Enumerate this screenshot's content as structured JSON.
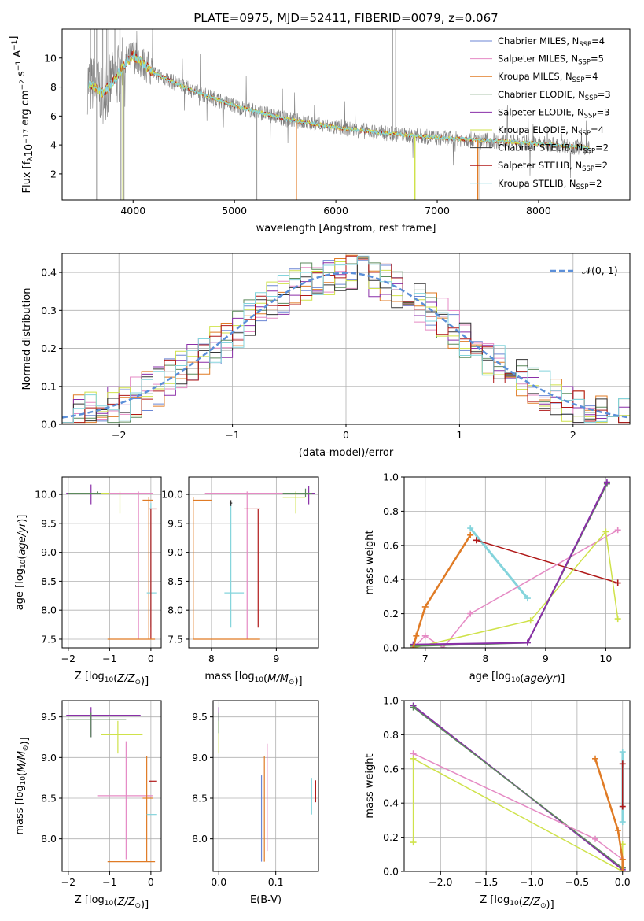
{
  "colors": {
    "chabrier_miles": "#6b86d4",
    "salpeter_miles": "#e58ac4",
    "kroupa_miles": "#e07b25",
    "chabrier_elodie": "#5c8a5c",
    "salpeter_elodie": "#8a2fa8",
    "kroupa_elodie": "#cfe24a",
    "chabrier_stelib": "#333333",
    "salpeter_stelib": "#b01818",
    "kroupa_stelib": "#84d4dc",
    "data": "#808080",
    "gauss": "#5b8fd9"
  },
  "chart_data": [
    {
      "id": "spectrum",
      "type": "line",
      "title": "PLATE=0975, MJD=52411, FIBERID=0079, z=0.067",
      "xlabel": "wavelength [Angstrom, rest frame]",
      "ylabel": "Flux [f_λ 10^-17 erg cm^-2 s^-1 A^-1]",
      "xlim": [
        3300,
        8900
      ],
      "ylim": [
        0.2,
        12
      ],
      "xticks": [
        "4000",
        "5000",
        "6000",
        "7000",
        "8000"
      ],
      "yticks": [
        "2",
        "4",
        "6",
        "8",
        "10"
      ],
      "grid": false,
      "legend_position": "top-right",
      "continuum_x": [
        3550,
        3700,
        3800,
        3900,
        4000,
        4200,
        4500,
        4800,
        5000,
        5500,
        6000,
        6500,
        7000,
        7500,
        8000,
        8500
      ],
      "continuum_y": [
        8.3,
        7.6,
        8.3,
        9.4,
        10.2,
        9.0,
        8.0,
        7.2,
        6.7,
        5.8,
        5.2,
        4.8,
        4.5,
        4.3,
        4.1,
        3.8
      ],
      "legend": [
        {
          "label": "Chabrier MILES, N",
          "sub": "SSP",
          "suffix": "=4",
          "color_key": "chabrier_miles"
        },
        {
          "label": "Salpeter MILES, N",
          "sub": "SSP",
          "suffix": "=5",
          "color_key": "salpeter_miles"
        },
        {
          "label": "Kroupa MILES, N",
          "sub": "SSP",
          "suffix": "=4",
          "color_key": "kroupa_miles"
        },
        {
          "label": "Chabrier ELODIE, N",
          "sub": "SSP",
          "suffix": "=3",
          "color_key": "chabrier_elodie"
        },
        {
          "label": "Salpeter ELODIE, N",
          "sub": "SSP",
          "suffix": "=3",
          "color_key": "salpeter_elodie"
        },
        {
          "label": "Kroupa ELODIE, N",
          "sub": "SSP",
          "suffix": "=4",
          "color_key": "kroupa_elodie"
        },
        {
          "label": "Chabrier STELIB, N",
          "sub": "SSP",
          "suffix": "=2",
          "color_key": "chabrier_stelib"
        },
        {
          "label": "Salpeter STELIB, N",
          "sub": "SSP",
          "suffix": "=2",
          "color_key": "salpeter_stelib"
        },
        {
          "label": "Kroupa STELIB, N",
          "sub": "SSP",
          "suffix": "=2",
          "color_key": "kroupa_stelib"
        }
      ]
    },
    {
      "id": "residuals",
      "type": "line",
      "xlabel": "(data-model)/error",
      "ylabel": "Normed distribution",
      "xlim": [
        -2.5,
        2.5
      ],
      "ylim": [
        0,
        0.45
      ],
      "xticks": [
        "−2",
        "−1",
        "0",
        "1",
        "2"
      ],
      "yticks": [
        "0.0",
        "0.1",
        "0.2",
        "0.3",
        "0.4"
      ],
      "grid": true,
      "legend_position": "top-right",
      "legend_label": "𝒩(0, 1)",
      "bin_width": 0.1
    },
    {
      "id": "age-vs-Z",
      "type": "scatter",
      "xlabel": "Z [log10(Z/Z⊙)]",
      "ylabel": "age  [log10(age/yr)]",
      "xlim": [
        -2.15,
        0.25
      ],
      "ylim": [
        7.35,
        10.3
      ],
      "xticks": [
        "−2",
        "−1",
        "0"
      ],
      "yticks": [
        "7.5",
        "8.0",
        "8.5",
        "9.0",
        "9.5",
        "10.0"
      ],
      "grid": true,
      "points": [
        {
          "c": "salpeter_elodie",
          "x": -1.45,
          "y": 10.02,
          "xlo": -2.05,
          "xhi": -0.85,
          "ylo": 9.83,
          "yhi": 10.17
        },
        {
          "c": "chabrier_elodie",
          "x": -1.3,
          "y": 10.02,
          "xlo": -2.0,
          "xhi": -0.3,
          "ylo": 10.0,
          "yhi": 10.05
        },
        {
          "c": "kroupa_elodie",
          "x": -0.75,
          "y": 10.02,
          "xlo": -1.2,
          "xhi": -0.3,
          "ylo": 9.67,
          "yhi": 10.05
        },
        {
          "c": "salpeter_miles",
          "x": -0.3,
          "y": 10.02,
          "xlo": -1.0,
          "xhi": 0.05,
          "ylo": 7.5,
          "yhi": 10.05
        },
        {
          "c": "kroupa_miles",
          "x": -0.05,
          "y": 9.9,
          "xlo": -0.2,
          "xhi": 0.05,
          "ylo": 7.5,
          "yhi": 9.95
        },
        {
          "c": "kroupa_stelib",
          "x": 0.0,
          "y": 8.3,
          "xlo": -0.1,
          "xhi": 0.15,
          "ylo": 7.7,
          "yhi": 9.85
        },
        {
          "c": "salpeter_stelib",
          "x": 0.0,
          "y": 9.75,
          "xlo": -0.05,
          "xhi": 0.15,
          "ylo": 7.5,
          "yhi": 9.75
        },
        {
          "c": "kroupa_miles",
          "x": -0.5,
          "y": 7.5,
          "xlo": -1.05,
          "xhi": 0.1,
          "ylo": 7.5,
          "yhi": 7.5
        }
      ]
    },
    {
      "id": "age-vs-mass",
      "type": "scatter",
      "xlabel": "mass [log10(M/M⊙)]",
      "ylabel": "",
      "xlim": [
        7.65,
        9.65
      ],
      "ylim": [
        7.35,
        10.3
      ],
      "xticks": [
        "8",
        "9"
      ],
      "yticks": [
        "7.5",
        "8.0",
        "8.5",
        "9.0",
        "9.5",
        "10.0"
      ],
      "grid": true,
      "points": [
        {
          "c": "salpeter_elodie",
          "x": 9.5,
          "y": 10.02,
          "xlo": 9.3,
          "xhi": 9.6,
          "ylo": 9.83,
          "yhi": 10.15
        },
        {
          "c": "kroupa_elodie",
          "x": 9.3,
          "y": 9.95,
          "xlo": 9.1,
          "xhi": 9.45,
          "ylo": 9.67,
          "yhi": 10.05
        },
        {
          "c": "chabrier_elodie",
          "x": 9.45,
          "y": 10.02,
          "xlo": 8.0,
          "xhi": 9.55,
          "ylo": 9.95,
          "yhi": 10.1
        },
        {
          "c": "salpeter_miles",
          "x": 8.55,
          "y": 10.02,
          "xlo": 7.9,
          "xhi": 9.1,
          "ylo": 7.5,
          "yhi": 10.05
        },
        {
          "c": "kroupa_miles",
          "x": 7.72,
          "y": 9.9,
          "xlo": 7.72,
          "xhi": 8.0,
          "ylo": 7.5,
          "yhi": 9.95
        },
        {
          "c": "kroupa_stelib",
          "x": 8.3,
          "y": 8.3,
          "xlo": 8.2,
          "xhi": 8.5,
          "ylo": 7.7,
          "yhi": 9.85
        },
        {
          "c": "salpeter_stelib",
          "x": 8.72,
          "y": 9.75,
          "xlo": 8.5,
          "xhi": 8.75,
          "ylo": 7.7,
          "yhi": 9.75
        },
        {
          "c": "kroupa_miles",
          "x": 8.2,
          "y": 7.5,
          "xlo": 7.72,
          "xhi": 8.75,
          "ylo": 7.5,
          "yhi": 7.5
        },
        {
          "c": "chabrier_stelib",
          "x": 8.3,
          "y": 9.85,
          "xlo": 8.28,
          "xhi": 8.32,
          "ylo": 9.8,
          "yhi": 9.9
        }
      ]
    },
    {
      "id": "massweight-vs-age",
      "type": "line",
      "xlabel": "age  [log10(age/yr)]",
      "ylabel": "mass weight",
      "xlim": [
        6.65,
        10.4
      ],
      "ylim": [
        0,
        1.0
      ],
      "xticks": [
        "7",
        "8",
        "9",
        "10"
      ],
      "yticks": [
        "0.0",
        "0.2",
        "0.4",
        "0.6",
        "0.8",
        "1.0"
      ],
      "grid": true,
      "series": [
        {
          "c": "kroupa_stelib",
          "x": [
            7.75,
            8.7
          ],
          "y": [
            0.7,
            0.29
          ],
          "w": 3
        },
        {
          "c": "salpeter_stelib",
          "x": [
            7.85,
            10.2
          ],
          "y": [
            0.63,
            0.38
          ],
          "w": 1.5
        },
        {
          "c": "salpeter_miles",
          "x": [
            6.8,
            7.0,
            7.3,
            7.75,
            10.2
          ],
          "y": [
            0.0,
            0.07,
            0.0,
            0.2,
            0.69
          ],
          "w": 1.5
        },
        {
          "c": "kroupa_elodie",
          "x": [
            6.8,
            8.75,
            10.0,
            10.2
          ],
          "y": [
            0.0,
            0.16,
            0.68,
            0.17
          ],
          "w": 1.5
        },
        {
          "c": "chabrier_elodie",
          "x": [
            6.8,
            8.7,
            10.02
          ],
          "y": [
            0.01,
            0.03,
            0.96
          ],
          "w": 2
        },
        {
          "c": "salpeter_elodie",
          "x": [
            6.8,
            8.7,
            10.02
          ],
          "y": [
            0.02,
            0.03,
            0.97
          ],
          "w": 2
        },
        {
          "c": "kroupa_miles",
          "x": [
            6.8,
            6.85,
            7.0,
            7.75
          ],
          "y": [
            0.0,
            0.07,
            0.24,
            0.66
          ],
          "w": 2.5
        }
      ]
    },
    {
      "id": "mass-vs-Z",
      "type": "scatter",
      "xlabel": "Z [log10(Z/Z⊙)]",
      "ylabel": "mass [log10(M/M⊙)]",
      "xlim": [
        -2.15,
        0.25
      ],
      "ylim": [
        7.6,
        9.7
      ],
      "xticks": [
        "−2",
        "−1",
        "0"
      ],
      "yticks": [
        "8.0",
        "8.5",
        "9.0",
        "9.5"
      ],
      "grid": true,
      "points": [
        {
          "c": "salpeter_elodie",
          "x": -1.45,
          "y": 9.52,
          "xlo": -2.05,
          "xhi": -0.25,
          "ylo": 9.25,
          "yhi": 9.62
        },
        {
          "c": "chabrier_elodie",
          "x": -1.45,
          "y": 9.47,
          "xlo": -2.05,
          "xhi": -0.6,
          "ylo": 9.25,
          "yhi": 9.55
        },
        {
          "c": "kroupa_elodie",
          "x": -0.8,
          "y": 9.28,
          "xlo": -1.2,
          "xhi": -0.2,
          "ylo": 9.05,
          "yhi": 9.45
        },
        {
          "c": "salpeter_miles",
          "x": -0.6,
          "y": 8.53,
          "xlo": -1.3,
          "xhi": 0.05,
          "ylo": 7.75,
          "yhi": 9.2
        },
        {
          "c": "kroupa_miles",
          "x": -0.1,
          "y": 8.5,
          "xlo": -0.2,
          "xhi": 0.05,
          "ylo": 7.72,
          "yhi": 9.02
        },
        {
          "c": "salpeter_stelib",
          "x": 0.0,
          "y": 8.71,
          "xlo": -0.05,
          "xhi": 0.15,
          "ylo": 8.71,
          "yhi": 8.71
        },
        {
          "c": "kroupa_stelib",
          "x": 0.0,
          "y": 8.3,
          "xlo": -0.1,
          "xhi": 0.15,
          "ylo": 8.3,
          "yhi": 8.3
        },
        {
          "c": "kroupa_miles",
          "x": -0.5,
          "y": 7.72,
          "xlo": -1.05,
          "xhi": 0.1,
          "ylo": 7.72,
          "yhi": 7.72
        }
      ]
    },
    {
      "id": "mass-vs-ebv",
      "type": "scatter",
      "xlabel": "E(B-V)",
      "ylabel": "",
      "xlim": [
        -0.01,
        0.175
      ],
      "ylim": [
        7.6,
        9.7
      ],
      "xticks": [
        "0.0",
        "0.1"
      ],
      "yticks": [
        "8.0",
        "8.5",
        "9.0",
        "9.5"
      ],
      "grid": true,
      "points": [
        {
          "c": "salpeter_elodie",
          "x": 0.0,
          "y": 9.52,
          "xlo": 0.0,
          "xhi": 0.0,
          "ylo": 9.45,
          "yhi": 9.62
        },
        {
          "c": "kroupa_elodie",
          "x": 0.0,
          "y": 9.28,
          "xlo": 0.0,
          "xhi": 0.0,
          "ylo": 9.05,
          "yhi": 9.45
        },
        {
          "c": "chabrier_elodie",
          "x": 0.0,
          "y": 9.47,
          "xlo": 0.0,
          "xhi": 0.0,
          "ylo": 9.3,
          "yhi": 9.55
        },
        {
          "c": "kroupa_miles",
          "x": 0.08,
          "y": 8.5,
          "xlo": 0.08,
          "xhi": 0.08,
          "ylo": 7.72,
          "yhi": 9.02
        },
        {
          "c": "salpeter_miles",
          "x": 0.085,
          "y": 8.5,
          "xlo": 0.085,
          "xhi": 0.085,
          "ylo": 7.85,
          "yhi": 9.17
        },
        {
          "c": "chabrier_miles",
          "x": 0.075,
          "y": 8.2,
          "xlo": 0.075,
          "xhi": 0.075,
          "ylo": 7.72,
          "yhi": 8.78
        },
        {
          "c": "kroupa_stelib",
          "x": 0.163,
          "y": 8.5,
          "xlo": 0.163,
          "xhi": 0.163,
          "ylo": 8.3,
          "yhi": 8.75
        },
        {
          "c": "salpeter_stelib",
          "x": 0.17,
          "y": 8.55,
          "xlo": 0.17,
          "xhi": 0.17,
          "ylo": 8.45,
          "yhi": 8.72
        }
      ]
    },
    {
      "id": "massweight-vs-Z",
      "type": "line",
      "xlabel": "Z [log10(Z/Z⊙)]",
      "ylabel": "mass weight",
      "xlim": [
        -2.4,
        0.08
      ],
      "ylim": [
        0,
        1.0
      ],
      "xticks": [
        "−2.0",
        "−1.5",
        "−1.0",
        "−0.5",
        "0.0"
      ],
      "yticks": [
        "0.0",
        "0.2",
        "0.4",
        "0.6",
        "0.8",
        "1.0"
      ],
      "grid": true,
      "series": [
        {
          "c": "salpeter_elodie",
          "x": [
            -2.3,
            0.0,
            0.0
          ],
          "y": [
            0.97,
            0.01,
            0.02
          ],
          "w": 2
        },
        {
          "c": "chabrier_elodie",
          "x": [
            -2.3,
            0.0
          ],
          "y": [
            0.96,
            0.02
          ],
          "w": 1.5
        },
        {
          "c": "salpeter_miles",
          "x": [
            -2.3,
            -0.3,
            0.0
          ],
          "y": [
            0.69,
            0.19,
            0.07
          ],
          "w": 1.5
        },
        {
          "c": "kroupa_elodie",
          "x": [
            -2.3,
            -2.3,
            0.0,
            0.0
          ],
          "y": [
            0.17,
            0.66,
            0.0,
            0.16
          ],
          "w": 1.5
        },
        {
          "c": "kroupa_miles",
          "x": [
            -0.3,
            -0.05,
            0.0,
            0.0
          ],
          "y": [
            0.66,
            0.24,
            0.07,
            0.0
          ],
          "w": 2.5
        },
        {
          "c": "kroupa_stelib",
          "x": [
            0.0,
            0.0
          ],
          "y": [
            0.7,
            0.29
          ],
          "w": 2.5
        },
        {
          "c": "salpeter_stelib",
          "x": [
            0.0,
            0.0
          ],
          "y": [
            0.63,
            0.38
          ],
          "w": 1.5
        }
      ]
    }
  ]
}
